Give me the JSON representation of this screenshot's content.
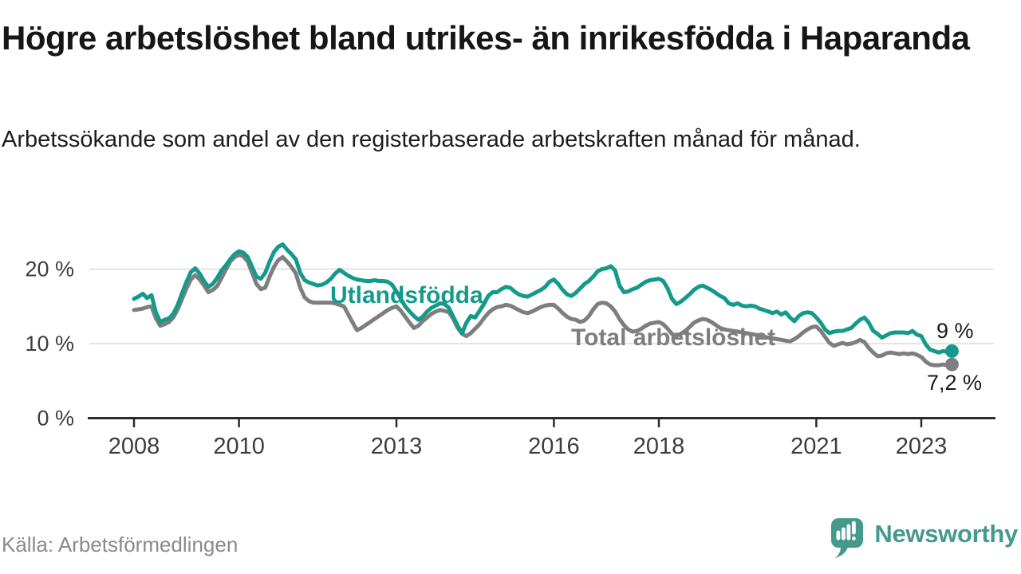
{
  "page": {
    "title": "Högre arbetslöshet bland utrikes- än inrikesfödda i Haparanda",
    "subtitle": "Arbetssökande som andel av den registerbaserade arbetskraften månad för månad.",
    "source": "Källa: Arbetsförmedlingen",
    "brand": {
      "name": "Newsworthy",
      "icon": "newsworthy-speech-bubble-bar-chart-icon",
      "color": "#45998d"
    }
  },
  "chart_data": {
    "type": "line",
    "title": "Högre arbetslöshet bland utrikes- än inrikesfödda i Haparanda",
    "subtitle": "Arbetssökande som andel av den registerbaserade arbetskraften månad för månad.",
    "unit": "%",
    "frequency": "monthly",
    "start_year": 2008,
    "end_point": "2023-08",
    "grid": "horizontal",
    "legend": "inline-annotations",
    "colors": {
      "utlandsfodda": "#149a8b",
      "total": "#7e7e7e",
      "axis": "#2b2b2b",
      "gridline": "#dcdcdc"
    },
    "x_axis": {
      "ticks": [
        {
          "year": 2008,
          "label": "2008"
        },
        {
          "year": 2010,
          "label": "2010"
        },
        {
          "year": 2013,
          "label": "2013"
        },
        {
          "year": 2016,
          "label": "2016"
        },
        {
          "year": 2018,
          "label": "2018"
        },
        {
          "year": 2021,
          "label": "2021"
        },
        {
          "year": 2023,
          "label": "2023"
        }
      ]
    },
    "y_axis": {
      "range": [
        0,
        25
      ],
      "ticks": [
        {
          "value": 0,
          "label": "0 %"
        },
        {
          "value": 10,
          "label": "10 %"
        },
        {
          "value": 20,
          "label": "20 %"
        }
      ]
    },
    "series": [
      {
        "name": "Utlandsfödda",
        "slug": "utlandsfodda",
        "color": "#149a8b",
        "end_label": "9 %",
        "last_value": 9.0,
        "values": [
          16,
          16.3,
          16.7,
          16.1,
          16.5,
          14.2,
          12.9,
          13.2,
          13.4,
          14,
          15.2,
          16.8,
          18.3,
          19.6,
          20.1,
          19.4,
          18.4,
          17.6,
          18,
          18.8,
          19.8,
          20.5,
          21.3,
          22,
          22.4,
          22.2,
          21.6,
          20.3,
          19,
          18.7,
          19.5,
          21,
          22.3,
          23,
          23.3,
          22.6,
          22,
          21.3,
          19.5,
          18.5,
          18.2,
          18,
          17.8,
          17.9,
          18.2,
          18.7,
          19.4,
          19.9,
          19.5,
          19.1,
          18.8,
          18.6,
          18.5,
          18.4,
          18.4,
          18.5,
          18.4,
          18.4,
          18.3,
          17.9,
          17,
          16,
          15,
          14.3,
          13.7,
          13.2,
          13.6,
          14.3,
          14.8,
          15.1,
          15.4,
          15.3,
          14.8,
          13.6,
          12.4,
          11.4,
          12.8,
          13.7,
          13.5,
          14.4,
          15.3,
          16.4,
          16.9,
          16.9,
          17.3,
          17.6,
          17.5,
          17,
          16.6,
          16.4,
          16.3,
          16.6,
          16.9,
          17.2,
          17.6,
          18.3,
          18.6,
          18,
          17.2,
          16.6,
          16.4,
          16.8,
          17.4,
          18,
          18.4,
          19,
          19.7,
          20,
          20.1,
          20.4,
          19.8,
          17.8,
          16.9,
          17,
          17.3,
          17.5,
          17.9,
          18.3,
          18.5,
          18.6,
          18.7,
          18.4,
          17.4,
          16,
          15.3,
          15.6,
          16.1,
          16.6,
          17.2,
          17.6,
          17.8,
          17.5,
          17.2,
          16.8,
          16.4,
          16.1,
          15.4,
          15.2,
          15.4,
          15.1,
          15,
          15.1,
          15,
          14.7,
          14.5,
          14.3,
          14.1,
          14.3,
          13.9,
          14.2,
          13.5,
          13,
          13.7,
          14.1,
          14.2,
          14.1,
          13.5,
          12.8,
          11.9,
          11.4,
          11.6,
          11.7,
          11.7,
          11.9,
          12.1,
          12.7,
          13.2,
          13.5,
          12.8,
          11.7,
          11.3,
          10.8,
          11.1,
          11.4,
          11.5,
          11.5,
          11.5,
          11.4,
          11.7,
          11.2,
          11,
          9.9,
          9.2,
          9,
          8.8,
          9,
          8.9,
          9
        ]
      },
      {
        "name": "Total arbetslöshet",
        "slug": "total-arbetsloshet",
        "color": "#7e7e7e",
        "end_label": "7,2 %",
        "last_value": 7.2,
        "values": [
          14.5,
          14.6,
          14.7,
          14.9,
          15,
          13.4,
          12.4,
          12.6,
          12.9,
          13.5,
          14.6,
          16,
          17.4,
          18.6,
          19.2,
          18.6,
          17.8,
          16.9,
          17.2,
          17.7,
          18.8,
          19.9,
          21,
          21.6,
          21.9,
          21.7,
          21,
          19.5,
          18,
          17.3,
          17.5,
          19,
          20.3,
          21.2,
          21.6,
          21,
          20.3,
          19.4,
          17.5,
          16.2,
          15.7,
          15.5,
          15.5,
          15.5,
          15.5,
          15.5,
          15.4,
          15.2,
          15,
          13.9,
          12.8,
          11.8,
          12.1,
          12.5,
          12.9,
          13.3,
          13.7,
          14.1,
          14.5,
          14.8,
          15,
          14.4,
          13.6,
          12.8,
          12.1,
          12.4,
          13,
          13.5,
          14,
          14.3,
          14.5,
          14.4,
          14.2,
          13.3,
          12.1,
          11.3,
          11,
          11.4,
          12,
          12.6,
          13.4,
          14.1,
          14.6,
          14.9,
          15,
          15.2,
          15.1,
          14.8,
          14.5,
          14.2,
          14.1,
          14.3,
          14.6,
          14.9,
          15.1,
          15.2,
          15.2,
          14.7,
          14.1,
          13.6,
          13.3,
          13.2,
          12.9,
          13.1,
          13.7,
          14.6,
          15.3,
          15.5,
          15.4,
          15,
          14.3,
          13.3,
          12.5,
          11.9,
          11.6,
          11.7,
          12,
          12.4,
          12.7,
          12.8,
          12.9,
          12.6,
          12,
          11.3,
          11,
          11.3,
          11.7,
          12.2,
          12.8,
          13.1,
          13.3,
          13.2,
          12.9,
          12.5,
          12.1,
          11.9,
          11.8,
          11.7,
          11.6,
          11.5,
          11.4,
          11.3,
          11.2,
          11.1,
          10.9,
          10.8,
          10.7,
          10.6,
          10.5,
          10.4,
          10.3,
          10.6,
          11,
          11.5,
          11.9,
          12.2,
          12.3,
          11.7,
          10.9,
          10.1,
          9.7,
          9.9,
          10.1,
          9.9,
          10,
          10.2,
          10.5,
          10.2,
          9.4,
          8.8,
          8.3,
          8.4,
          8.7,
          8.8,
          8.7,
          8.6,
          8.7,
          8.6,
          8.7,
          8.5,
          8.2,
          7.6,
          7.2,
          7.1,
          7.1,
          7.2,
          7.1,
          7.2
        ]
      }
    ]
  }
}
